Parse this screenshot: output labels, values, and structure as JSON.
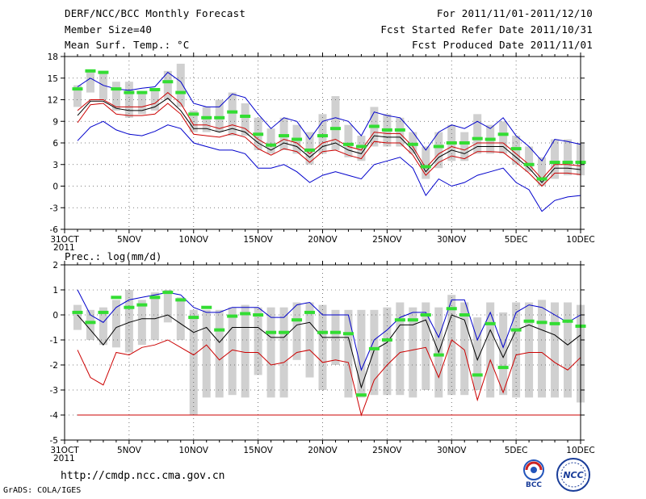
{
  "header": {
    "title": "DERF/NCC/BCC Monthly Forecast",
    "member_size": "Member Size=40",
    "variable": "Mean Surf. Temp.: °C",
    "period": "For 2011/11/01-2011/12/10",
    "started": "Fcst Started Refer Date 2011/10/31",
    "produced": "Fcst Produced Date 2011/11/01"
  },
  "footer": {
    "url": "http://cmdp.ncc.cma.gov.cn",
    "credit": "GrADS: COLA/IGES",
    "logo_bcc": "BCC",
    "logo_ncc": "NCC"
  },
  "colors": {
    "box": "#d0d0d0",
    "green": "#33dd33",
    "blue": "#0000cc",
    "red": "#cc0000",
    "black": "#000000",
    "grid": "#555555"
  },
  "chart_data": [
    {
      "type": "box",
      "title": "Mean Surf. Temp.: °C",
      "ylim": [
        -6,
        18
      ],
      "yticks": [
        -6,
        -3,
        0,
        3,
        6,
        9,
        12,
        15,
        18
      ],
      "x_ticks": [
        {
          "day": 0,
          "label": "31OCT",
          "sub": "2011"
        },
        {
          "day": 5,
          "label": "5NOV"
        },
        {
          "day": 10,
          "label": "10NOV"
        },
        {
          "day": 15,
          "label": "15NOV"
        },
        {
          "day": 20,
          "label": "20NOV"
        },
        {
          "day": 25,
          "label": "25NOV"
        },
        {
          "day": 30,
          "label": "30NOV"
        },
        {
          "day": 35,
          "label": "5DEC"
        },
        {
          "day": 40,
          "label": "10DEC"
        }
      ],
      "days": [
        1,
        2,
        3,
        4,
        5,
        6,
        7,
        8,
        9,
        10,
        11,
        12,
        13,
        14,
        15,
        16,
        17,
        18,
        19,
        20,
        21,
        22,
        23,
        24,
        25,
        26,
        27,
        28,
        29,
        30,
        31,
        32,
        33,
        34,
        35,
        36,
        37,
        38,
        39,
        40
      ],
      "box_low": [
        11,
        13,
        12,
        10.5,
        9.5,
        10,
        10.5,
        12,
        11,
        7.5,
        7.5,
        7.5,
        7,
        7,
        5,
        4.5,
        5,
        4.5,
        3,
        4.5,
        5,
        4,
        3.5,
        5.5,
        5.5,
        5.5,
        4.5,
        1,
        2.5,
        3.5,
        3.5,
        4.5,
        4.5,
        4.5,
        3,
        2,
        0,
        1,
        1.5,
        1.5
      ],
      "box_high": [
        14,
        16,
        16,
        14.5,
        14.5,
        13,
        13.5,
        16,
        17,
        10.5,
        11,
        12,
        13,
        11.5,
        9.5,
        8,
        9.5,
        8.5,
        7.5,
        10,
        12.5,
        8.5,
        7,
        11,
        10,
        9.5,
        7.5,
        5.5,
        7.5,
        8.5,
        7.5,
        10,
        8.5,
        9,
        7,
        5.5,
        4,
        6.5,
        6.5,
        6
      ],
      "ens_green": [
        13.5,
        16,
        15.8,
        13.5,
        13,
        13,
        13.4,
        14.5,
        13,
        10,
        9.5,
        9.5,
        10.3,
        9.7,
        7.2,
        5.7,
        7,
        6.5,
        5,
        7,
        8,
        5.8,
        5.5,
        8.3,
        7.8,
        7.8,
        5.8,
        2.7,
        5.5,
        6,
        6,
        6.6,
        6.5,
        7.2,
        5.2,
        3,
        1,
        3.3,
        3.3,
        3.3
      ],
      "blue_upper": [
        13.8,
        15,
        14,
        13.5,
        13.3,
        13.6,
        13.8,
        15.8,
        14.5,
        11.5,
        11,
        11,
        12.8,
        12.3,
        10,
        8,
        9.5,
        9,
        6.5,
        9,
        9.5,
        9,
        7,
        10.3,
        9.8,
        9.5,
        7.5,
        5,
        7.5,
        8.5,
        8,
        9,
        8,
        9.5,
        7,
        5.5,
        3.5,
        6.5,
        6.2,
        5.8
      ],
      "red_upper": [
        10.5,
        12,
        12,
        11,
        11,
        11,
        11.5,
        13,
        11.5,
        8.5,
        8.5,
        8,
        8.5,
        8,
        6.5,
        5.5,
        6.5,
        6,
        4.5,
        6,
        6.5,
        5.5,
        5,
        7.5,
        7.3,
        7.3,
        5.5,
        2.5,
        4.5,
        5.5,
        5,
        6,
        6,
        6,
        4.5,
        3,
        1,
        3,
        3,
        2.8
      ],
      "mean": [
        9.8,
        11.8,
        11.8,
        10.8,
        10.5,
        10.5,
        11,
        12.2,
        10.5,
        8,
        8,
        7.5,
        8,
        7.5,
        6,
        5,
        6,
        5.5,
        4,
        5.5,
        6,
        5,
        4.5,
        7,
        6.8,
        6.8,
        5,
        2,
        4,
        5,
        4.5,
        5.5,
        5.5,
        5.5,
        4,
        2.5,
        0.5,
        2.5,
        2.5,
        2.3
      ],
      "red_lower": [
        8.8,
        11.3,
        11.5,
        10,
        9.8,
        9.8,
        10,
        11.5,
        10,
        7.2,
        7,
        6.8,
        7.3,
        6.8,
        5.2,
        4.3,
        5.2,
        4.8,
        3.3,
        4.8,
        5,
        4.3,
        3.8,
        6.2,
        6,
        6,
        4.3,
        1.5,
        3.3,
        4.2,
        3.8,
        4.8,
        4.8,
        4.7,
        3.3,
        1.8,
        0,
        1.8,
        1.8,
        1.6
      ],
      "blue_lower": [
        6.3,
        8.2,
        9,
        7.8,
        7.2,
        7,
        7.6,
        8.5,
        8,
        6,
        5.5,
        5,
        5,
        4.5,
        2.5,
        2.5,
        3,
        2,
        0.5,
        1.5,
        2,
        1.5,
        1,
        3,
        3.5,
        4,
        2.5,
        -1.3,
        1,
        0,
        0.5,
        1.5,
        2,
        2.5,
        0.5,
        -0.5,
        -3.5,
        -2,
        -1.5,
        -1.3
      ]
    },
    {
      "type": "box",
      "title": "Prec.: log(mm/d)",
      "ylim": [
        -5,
        2
      ],
      "yticks": [
        -5,
        -4,
        -3,
        -2,
        -1,
        0,
        1,
        2
      ],
      "x_ticks": [
        {
          "day": 0,
          "label": "31OCT",
          "sub": "2011"
        },
        {
          "day": 5,
          "label": "5NOV"
        },
        {
          "day": 10,
          "label": "10NOV"
        },
        {
          "day": 15,
          "label": "15NOV"
        },
        {
          "day": 20,
          "label": "20NOV"
        },
        {
          "day": 25,
          "label": "25NOV"
        },
        {
          "day": 30,
          "label": "30NOV"
        },
        {
          "day": 35,
          "label": "5DEC"
        },
        {
          "day": 40,
          "label": "10DEC"
        }
      ],
      "days": [
        1,
        2,
        3,
        4,
        5,
        6,
        7,
        8,
        9,
        10,
        11,
        12,
        13,
        14,
        15,
        16,
        17,
        18,
        19,
        20,
        21,
        22,
        23,
        24,
        25,
        26,
        27,
        28,
        29,
        30,
        31,
        32,
        33,
        34,
        35,
        36,
        37,
        38,
        39,
        40
      ],
      "box_low": [
        -0.6,
        -1,
        -1.2,
        -1.3,
        -1.5,
        -1.2,
        -1,
        -0.3,
        -1,
        -4,
        -3.3,
        -3.3,
        -3.2,
        -3.3,
        -2.4,
        -3.3,
        -3.3,
        -1.8,
        -2.5,
        -3,
        -2,
        -3.3,
        -3.3,
        -3.2,
        -3.2,
        -3.2,
        -3.3,
        -3,
        -3.3,
        -3.2,
        -3.2,
        -3,
        -3.3,
        -3.2,
        -3.3,
        -3.3,
        -3.3,
        -3.3,
        -3.3,
        -3.5
      ],
      "box_high": [
        0.4,
        0.2,
        0.3,
        0.6,
        1,
        0.6,
        0.9,
        1,
        0.7,
        0.2,
        0.2,
        0.2,
        0.3,
        0.4,
        0.3,
        0.3,
        0.3,
        0.5,
        0.5,
        0.4,
        0.2,
        0.2,
        0.2,
        0.2,
        0.3,
        0.5,
        0.3,
        0.5,
        0.3,
        0.8,
        0.5,
        -0.1,
        0.5,
        0.1,
        0.5,
        0.5,
        0.6,
        0.5,
        0.5,
        0.4
      ],
      "ens_green": [
        0.1,
        -0.3,
        0.1,
        0.7,
        0.3,
        0.4,
        0.7,
        0.9,
        0.6,
        -0.1,
        0.3,
        -0.6,
        -0.05,
        0.05,
        0,
        -0.7,
        -0.7,
        -0.2,
        0.1,
        -0.7,
        -0.7,
        -0.75,
        -3.2,
        -1.35,
        -1,
        -0.2,
        -0.2,
        0,
        -1.6,
        0.25,
        0,
        -2.4,
        -0.35,
        -2.1,
        -0.6,
        -0.25,
        -0.3,
        -0.35,
        -0.25,
        -0.45
      ],
      "blue_upper": [
        1,
        0,
        -0.3,
        0.3,
        0.6,
        0.7,
        0.8,
        0.9,
        0.8,
        0.3,
        0.1,
        0.1,
        0.3,
        0.3,
        0.3,
        -0.1,
        -0.1,
        0.4,
        0.5,
        0,
        0,
        0,
        -2.2,
        -1,
        -0.6,
        -0.1,
        0.1,
        0.1,
        -0.9,
        0.6,
        0.6,
        -1,
        0.1,
        -1.3,
        0.1,
        0.4,
        0.3,
        0,
        -0.3,
        0
      ],
      "mean": [
        0,
        -0.6,
        -1.2,
        -0.5,
        -0.3,
        -0.15,
        -0.15,
        0,
        -0.35,
        -0.7,
        -0.5,
        -1.1,
        -0.5,
        -0.5,
        -0.5,
        -0.9,
        -0.9,
        -0.4,
        -0.3,
        -0.9,
        -0.9,
        -0.9,
        -2.9,
        -1.4,
        -1.1,
        -0.4,
        -0.4,
        -0.2,
        -1.5,
        0,
        -0.2,
        -1.8,
        -0.6,
        -1.7,
        -0.6,
        -0.4,
        -0.6,
        -0.8,
        -1.2,
        -0.8
      ],
      "red_lower": [
        -1.4,
        -2.5,
        -2.8,
        -1.5,
        -1.6,
        -1.3,
        -1.2,
        -1,
        -1.3,
        -1.6,
        -1.2,
        -1.8,
        -1.4,
        -1.5,
        -1.5,
        -2,
        -1.9,
        -1.5,
        -1.4,
        -1.9,
        -1.8,
        -1.9,
        -4,
        -2.6,
        -2,
        -1.5,
        -1.4,
        -1.3,
        -2.5,
        -1,
        -1.4,
        -3.4,
        -1.8,
        -3.1,
        -1.6,
        -1.5,
        -1.5,
        -1.9,
        -2.2,
        -1.7
      ],
      "blue_lower": [
        -4,
        -4,
        -4,
        -4,
        -4,
        -4,
        -4,
        -4,
        -4,
        -4,
        -4,
        -4,
        -4,
        -4,
        -4,
        -4,
        -4,
        -4,
        -4,
        -4,
        -4,
        -4,
        -4,
        -4,
        -4,
        -4,
        -4,
        -4,
        -4,
        -4,
        -4,
        -4,
        -4,
        -4,
        -4,
        -4,
        -4,
        -4,
        -4,
        -4
      ]
    }
  ]
}
